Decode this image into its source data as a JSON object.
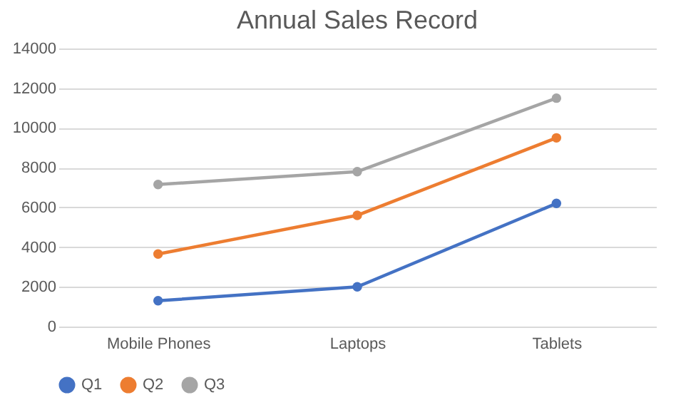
{
  "chart_data": {
    "type": "line",
    "title": "Annual Sales Record",
    "categories": [
      "Mobile Phones",
      "Laptops",
      "Tablets"
    ],
    "series": [
      {
        "name": "Q1",
        "color": "#4472c4",
        "values": [
          1300,
          2000,
          6200
        ]
      },
      {
        "name": "Q2",
        "color": "#ed7d31",
        "values": [
          3650,
          5600,
          9500
        ]
      },
      {
        "name": "Q3",
        "color": "#a5a5a5",
        "values": [
          7150,
          7800,
          11500
        ]
      }
    ],
    "ylim": [
      0,
      14000
    ],
    "yticks": [
      0,
      2000,
      4000,
      6000,
      8000,
      10000,
      12000,
      14000
    ],
    "grid": "y",
    "legend": "bottom",
    "marker": "circle",
    "line_style": "solid"
  }
}
